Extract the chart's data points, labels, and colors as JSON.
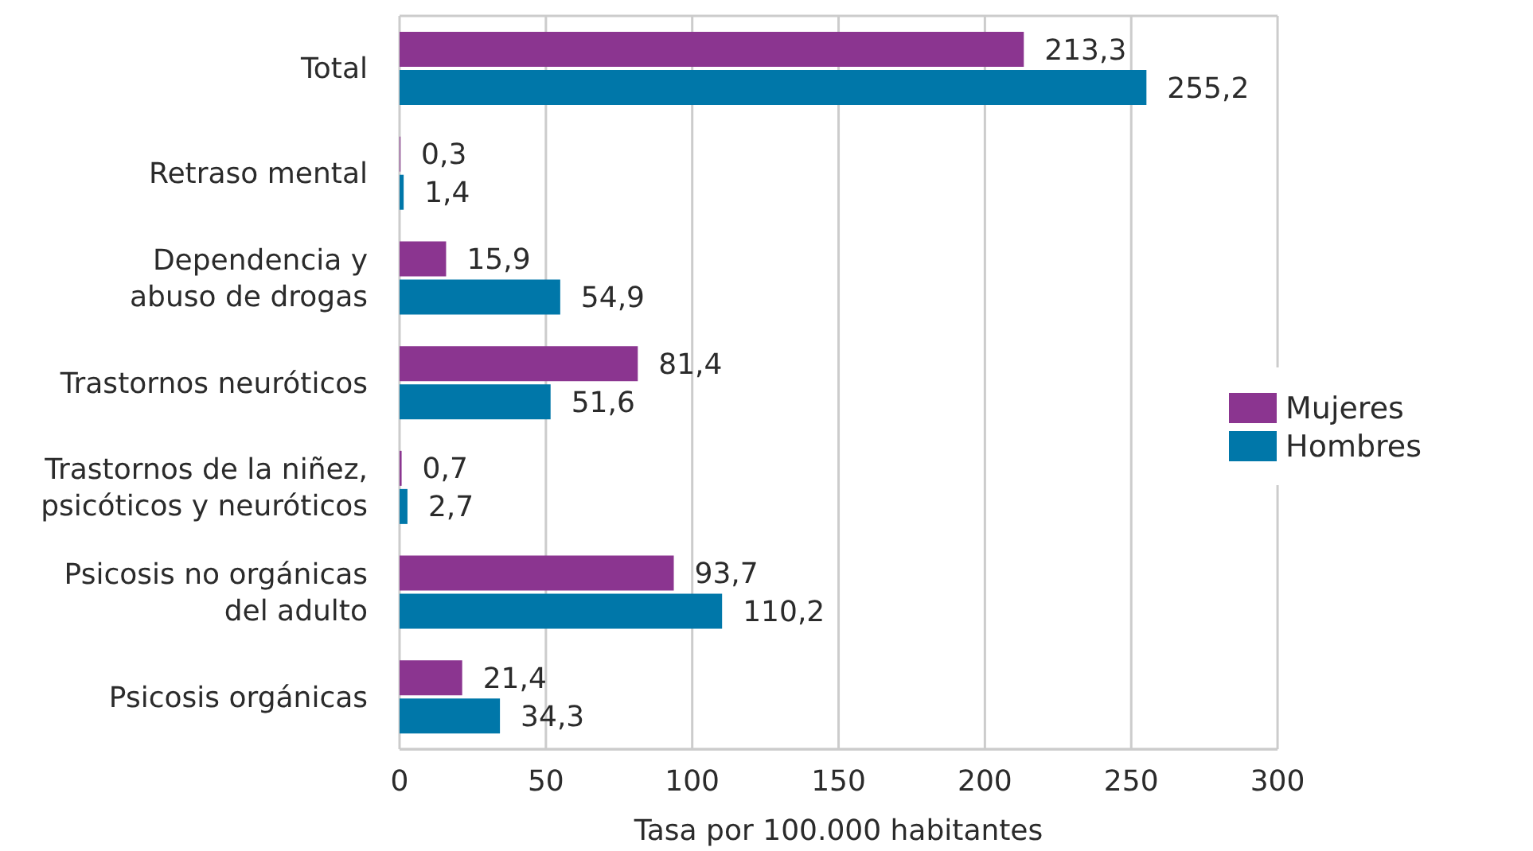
{
  "chart_data": {
    "type": "bar",
    "orientation": "horizontal",
    "categories": [
      "Total",
      "Retraso mental",
      "Dependencia y\nabuso de drogas",
      "Trastornos neuróticos",
      "Trastornos de la niñez,\npsicóticos y neuróticos",
      "Psicosis no orgánicas\ndel adulto",
      "Psicosis orgánicas"
    ],
    "series": [
      {
        "name": "Mujeres",
        "color": "#8b3590",
        "values": [
          213.3,
          0.3,
          15.9,
          81.4,
          0.7,
          93.7,
          21.4
        ],
        "value_labels": [
          "213,3",
          "0,3",
          "15,9",
          "81,4",
          "0,7",
          "93,7",
          "21,4"
        ]
      },
      {
        "name": "Hombres",
        "color": "#0077a9",
        "values": [
          255.2,
          1.4,
          54.9,
          51.6,
          2.7,
          110.2,
          34.3
        ],
        "value_labels": [
          "255,2",
          "1,4",
          "54,9",
          "51,6",
          "2,7",
          "110,2",
          "34,3"
        ]
      }
    ],
    "xlabel": "Tasa por 100.000 habitantes",
    "xlim": [
      0,
      300
    ],
    "xticks": [
      0,
      50,
      100,
      150,
      200,
      250,
      300
    ],
    "grid": "x",
    "legend": "right"
  }
}
